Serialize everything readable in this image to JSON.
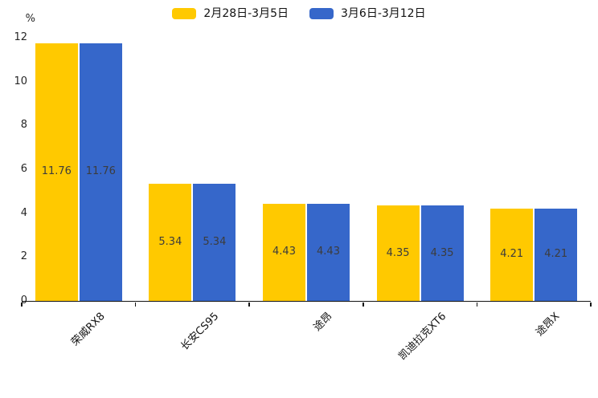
{
  "chart_data": {
    "type": "bar",
    "title": "",
    "categories": [
      "荣威RX8",
      "长安CS95",
      "途昂",
      "凯迪拉克XT6",
      "途昂X"
    ],
    "series": [
      {
        "name": "2月28日-3月5日",
        "color": "#FFC900",
        "values": [
          11.76,
          5.34,
          4.43,
          4.35,
          4.21
        ]
      },
      {
        "name": "3月6日-3月12日",
        "color": "#3667CA",
        "values": [
          11.76,
          5.34,
          4.43,
          4.35,
          4.21
        ]
      }
    ],
    "xlabel": "",
    "ylabel": "%",
    "ylim": [
      0,
      12
    ],
    "yticks": [
      0,
      2,
      4,
      6,
      8,
      10,
      12
    ],
    "grid": false,
    "legend_position": "top",
    "bar_labels_shown": true,
    "bar_label_color": "#3c3c3c",
    "axis_color": "#141414"
  }
}
